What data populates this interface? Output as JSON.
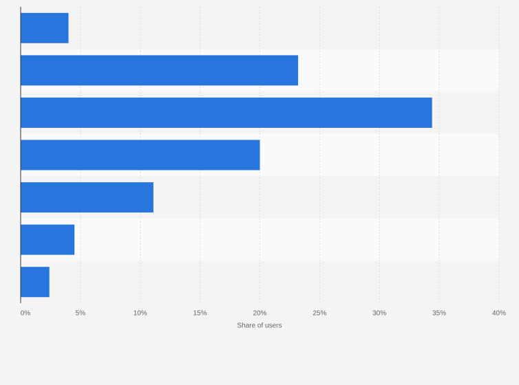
{
  "chart_data": {
    "type": "bar",
    "orientation": "horizontal",
    "categories": [
      null,
      null,
      null,
      null,
      null,
      null,
      null
    ],
    "values": [
      4.0,
      23.2,
      34.4,
      20.0,
      11.1,
      4.5,
      2.4
    ],
    "color": "#2876dd",
    "x_label": "Share of users",
    "xlim": [
      0,
      40
    ],
    "xticks": [
      {
        "value": 0,
        "label": "0%"
      },
      {
        "value": 5,
        "label": "5%"
      },
      {
        "value": 10,
        "label": "10%"
      },
      {
        "value": 15,
        "label": "15%"
      },
      {
        "value": 20,
        "label": "20%"
      },
      {
        "value": 25,
        "label": "25%"
      },
      {
        "value": 30,
        "label": "30%"
      },
      {
        "value": 35,
        "label": "35%"
      },
      {
        "value": 40,
        "label": "40%"
      }
    ],
    "grid": true
  }
}
